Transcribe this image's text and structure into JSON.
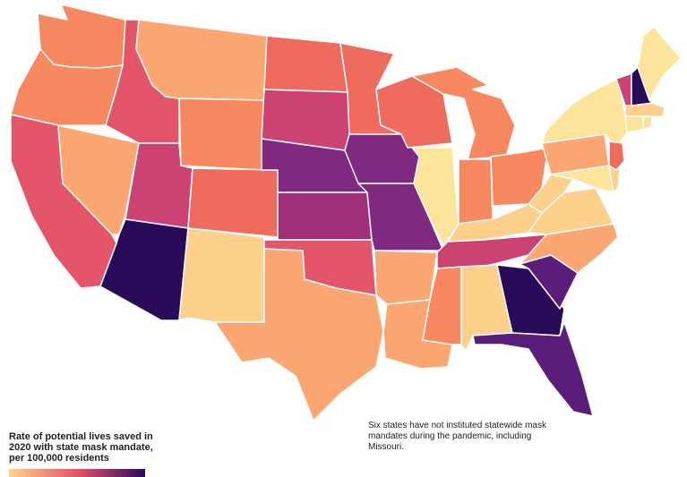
{
  "legend": {
    "title_lines": [
      "Rate of potential lives saved in",
      "2020 with state mask mandate,",
      "per 100,000 residents"
    ],
    "color_low": "#fcd48f",
    "color_mid": "#e4556a",
    "color_high": "#2a0b5a"
  },
  "note_lines": [
    "Six states have not instituted statewide mask",
    "mandates during the pandemic, including",
    "Missouri."
  ],
  "palette": {
    "pale": "#fce49a",
    "light": "#fdd08c",
    "peach": "#fca672",
    "salmon": "#f7885f",
    "coral": "#ee6b5e",
    "red": "#e4556a",
    "rose": "#cc4272",
    "magenta": "#a02f7a",
    "purple": "#7f2a80",
    "violet": "#5a1d79",
    "dark": "#2a0b5a"
  },
  "states": [
    {
      "name": "Washington",
      "shade": "salmon"
    },
    {
      "name": "Oregon",
      "shade": "salmon"
    },
    {
      "name": "California",
      "shade": "red"
    },
    {
      "name": "Idaho",
      "shade": "red"
    },
    {
      "name": "Nevada",
      "shade": "peach"
    },
    {
      "name": "Utah",
      "shade": "rose"
    },
    {
      "name": "Arizona",
      "shade": "dark"
    },
    {
      "name": "Montana",
      "shade": "peach"
    },
    {
      "name": "Wyoming",
      "shade": "salmon"
    },
    {
      "name": "Colorado",
      "shade": "coral"
    },
    {
      "name": "New Mexico",
      "shade": "light"
    },
    {
      "name": "North Dakota",
      "shade": "coral"
    },
    {
      "name": "South Dakota",
      "shade": "rose"
    },
    {
      "name": "Nebraska",
      "shade": "purple"
    },
    {
      "name": "Kansas",
      "shade": "magenta"
    },
    {
      "name": "Oklahoma",
      "shade": "red"
    },
    {
      "name": "Texas",
      "shade": "peach"
    },
    {
      "name": "Minnesota",
      "shade": "coral"
    },
    {
      "name": "Iowa",
      "shade": "purple"
    },
    {
      "name": "Missouri",
      "shade": "purple"
    },
    {
      "name": "Arkansas",
      "shade": "peach"
    },
    {
      "name": "Louisiana",
      "shade": "peach"
    },
    {
      "name": "Wisconsin",
      "shade": "coral"
    },
    {
      "name": "Illinois",
      "shade": "pale"
    },
    {
      "name": "Michigan",
      "shade": "salmon"
    },
    {
      "name": "Indiana",
      "shade": "salmon"
    },
    {
      "name": "Ohio",
      "shade": "salmon"
    },
    {
      "name": "Kentucky",
      "shade": "light"
    },
    {
      "name": "Tennessee",
      "shade": "rose"
    },
    {
      "name": "Mississippi",
      "shade": "salmon"
    },
    {
      "name": "Alabama",
      "shade": "light"
    },
    {
      "name": "Georgia",
      "shade": "dark"
    },
    {
      "name": "Florida",
      "shade": "violet"
    },
    {
      "name": "South Carolina",
      "shade": "violet"
    },
    {
      "name": "North Carolina",
      "shade": "peach"
    },
    {
      "name": "Virginia",
      "shade": "light"
    },
    {
      "name": "West Virginia",
      "shade": "light"
    },
    {
      "name": "Pennsylvania",
      "shade": "peach"
    },
    {
      "name": "New York",
      "shade": "pale"
    },
    {
      "name": "Maryland",
      "shade": "pale"
    },
    {
      "name": "Delaware",
      "shade": "light"
    },
    {
      "name": "New Jersey",
      "shade": "coral"
    },
    {
      "name": "Connecticut",
      "shade": "pale"
    },
    {
      "name": "Rhode Island",
      "shade": "pale"
    },
    {
      "name": "Massachusetts",
      "shade": "light"
    },
    {
      "name": "Vermont",
      "shade": "rose"
    },
    {
      "name": "New Hampshire",
      "shade": "dark"
    },
    {
      "name": "Maine",
      "shade": "pale"
    }
  ]
}
